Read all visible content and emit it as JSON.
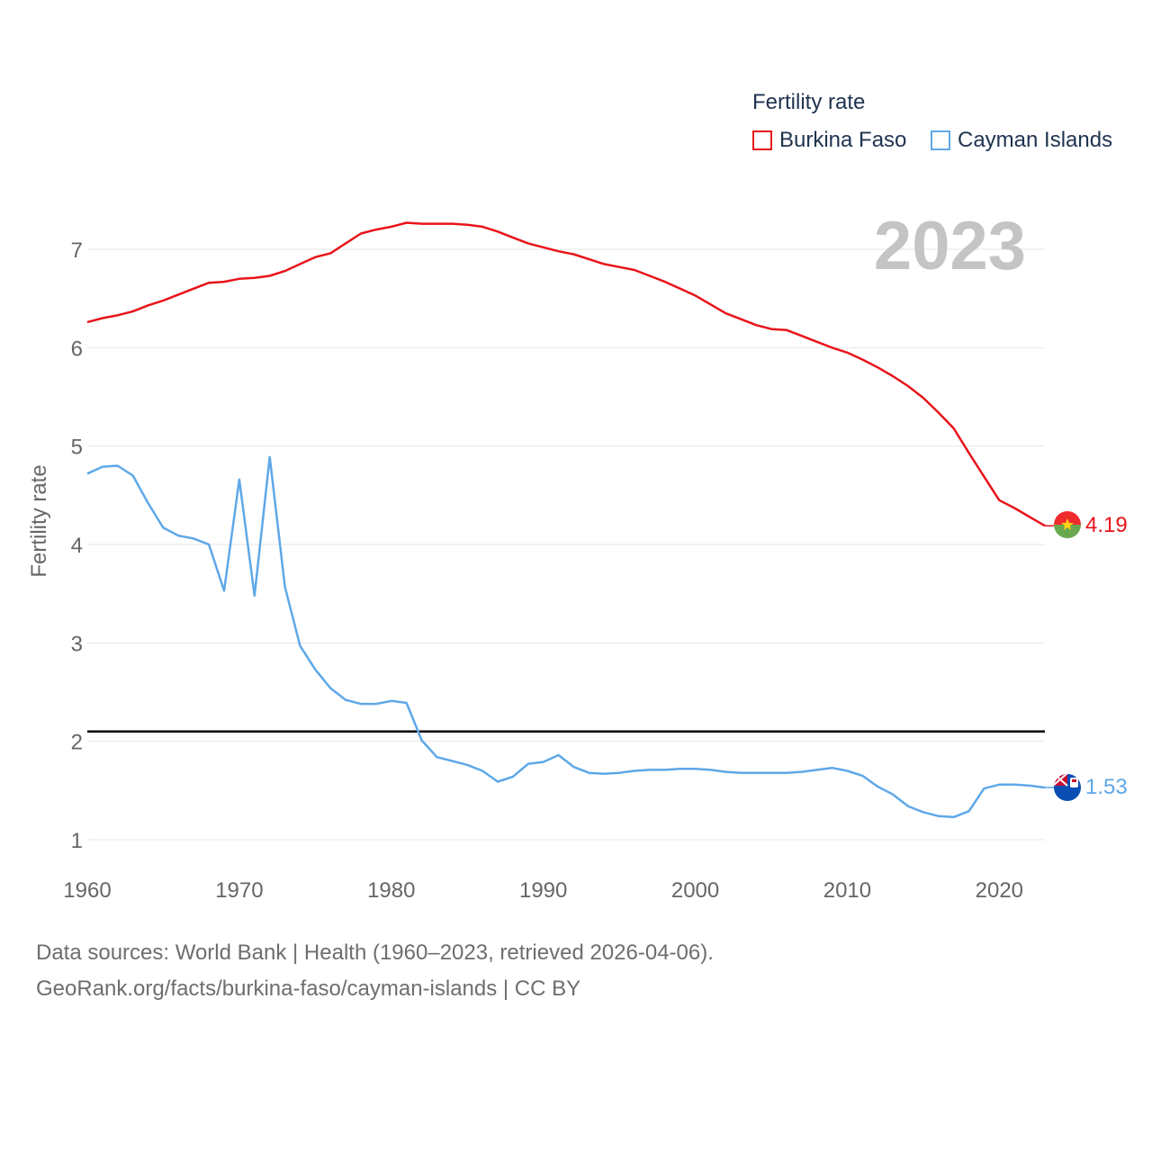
{
  "chart_data": {
    "type": "line",
    "title": "Fertility rate",
    "ylabel": "Fertility rate",
    "xlabel": "",
    "year_label": "2023",
    "xlim": [
      1960,
      2023
    ],
    "ylim": [
      0.75,
      7.6
    ],
    "y_ticks": [
      1,
      2,
      3,
      4,
      5,
      6,
      7
    ],
    "x_ticks": [
      1960,
      1970,
      1980,
      1990,
      2000,
      2010,
      2020
    ],
    "reference_line": {
      "value": 2.1,
      "color": "#000000"
    },
    "x": [
      1960,
      1961,
      1962,
      1963,
      1964,
      1965,
      1966,
      1967,
      1968,
      1969,
      1970,
      1971,
      1972,
      1973,
      1974,
      1975,
      1976,
      1977,
      1978,
      1979,
      1980,
      1981,
      1982,
      1983,
      1984,
      1985,
      1986,
      1987,
      1988,
      1989,
      1990,
      1991,
      1992,
      1993,
      1994,
      1995,
      1996,
      1997,
      1998,
      1999,
      2000,
      2001,
      2002,
      2003,
      2004,
      2005,
      2006,
      2007,
      2008,
      2009,
      2010,
      2011,
      2012,
      2013,
      2014,
      2015,
      2016,
      2017,
      2018,
      2019,
      2020,
      2021,
      2022,
      2023
    ],
    "series": [
      {
        "name": "Burkina Faso",
        "color": "#e8141a",
        "end_label": "4.19",
        "values": [
          6.26,
          6.3,
          6.33,
          6.37,
          6.43,
          6.48,
          6.54,
          6.6,
          6.66,
          6.67,
          6.7,
          6.71,
          6.73,
          6.78,
          6.85,
          6.92,
          6.96,
          7.06,
          7.16,
          7.2,
          7.23,
          7.27,
          7.26,
          7.26,
          7.26,
          7.25,
          7.23,
          7.18,
          7.12,
          7.06,
          7.02,
          6.98,
          6.95,
          6.9,
          6.85,
          6.82,
          6.79,
          6.73,
          6.67,
          6.6,
          6.53,
          6.44,
          6.35,
          6.29,
          6.23,
          6.19,
          6.18,
          6.12,
          6.06,
          6.0,
          5.95,
          5.88,
          5.8,
          5.71,
          5.61,
          5.49,
          5.34,
          5.18,
          4.93,
          4.69,
          4.45,
          4.37,
          4.28,
          4.19
        ]
      },
      {
        "name": "Cayman Islands",
        "color": "#5ea8e8",
        "end_label": "1.53",
        "values": [
          4.72,
          4.79,
          4.8,
          4.7,
          4.42,
          4.17,
          4.09,
          4.06,
          4.0,
          3.53,
          4.66,
          3.48,
          4.89,
          3.57,
          2.97,
          2.73,
          2.54,
          2.42,
          2.38,
          2.38,
          2.41,
          2.39,
          2.01,
          1.84,
          1.8,
          1.76,
          1.7,
          1.59,
          1.64,
          1.77,
          1.79,
          1.86,
          1.74,
          1.68,
          1.67,
          1.68,
          1.7,
          1.71,
          1.71,
          1.72,
          1.72,
          1.71,
          1.69,
          1.68,
          1.68,
          1.68,
          1.68,
          1.69,
          1.71,
          1.73,
          1.7,
          1.65,
          1.54,
          1.46,
          1.34,
          1.28,
          1.24,
          1.23,
          1.29,
          1.52,
          1.56,
          1.56,
          1.55,
          1.53
        ]
      }
    ]
  },
  "legend": {
    "title": "Fertility rate",
    "items": [
      "Burkina Faso",
      "Cayman Islands"
    ]
  },
  "footer": {
    "line1": "Data sources: World Bank | Health (1960–2023, retrieved 2026-04-06).",
    "line2": "GeoRank.org/facts/burkina-faso/cayman-islands | CC BY"
  }
}
